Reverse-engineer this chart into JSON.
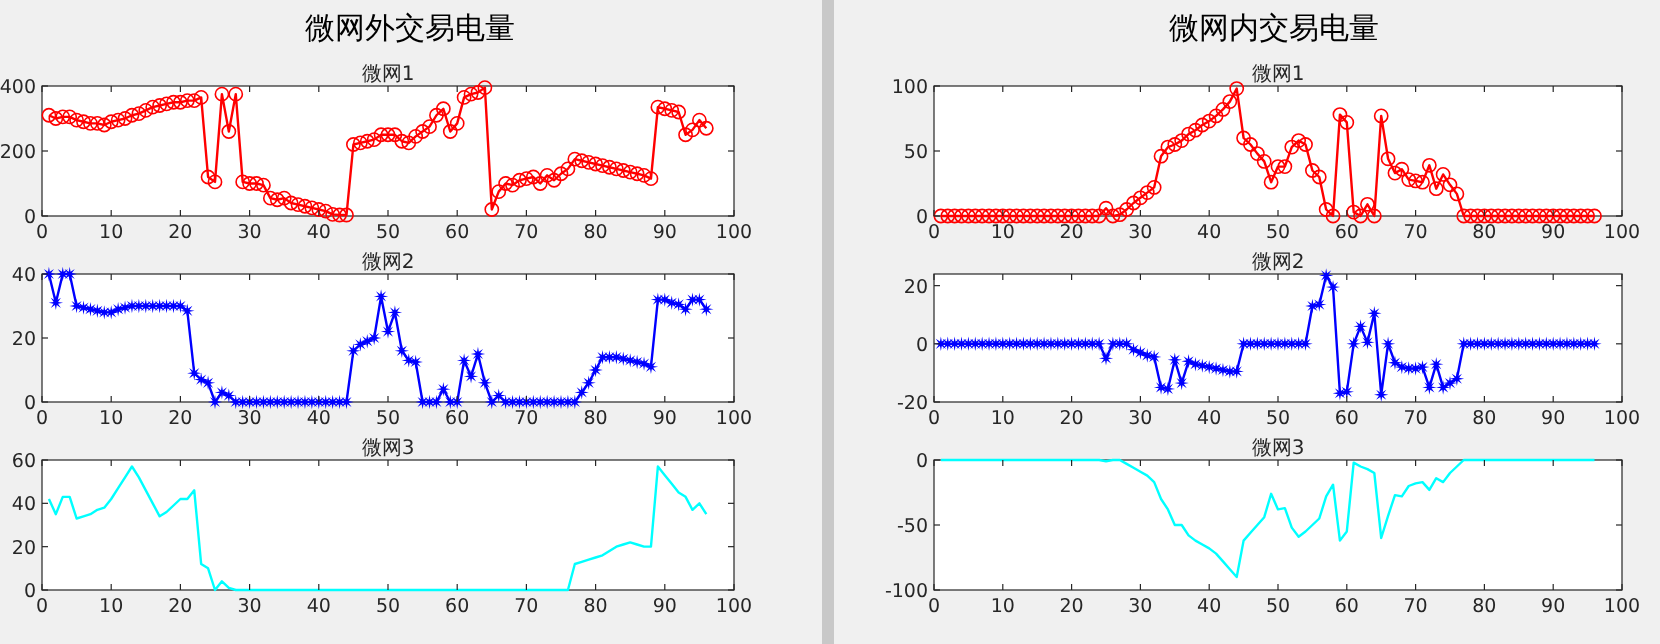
{
  "chart_data": [
    {
      "type": "line",
      "title": "微网外交易电量",
      "subtitle": "微网1",
      "grid": false,
      "marker": "circle",
      "xlim": [
        0,
        100
      ],
      "xticks": [
        0,
        10,
        20,
        30,
        40,
        50,
        60,
        70,
        80,
        90,
        100
      ],
      "ylim": [
        0,
        400
      ],
      "yticks": [
        0,
        200,
        400
      ],
      "x": [
        1,
        2,
        3,
        4,
        5,
        6,
        7,
        8,
        9,
        10,
        11,
        12,
        13,
        14,
        15,
        16,
        17,
        18,
        19,
        20,
        21,
        22,
        23,
        24,
        25,
        26,
        27,
        28,
        29,
        30,
        31,
        32,
        33,
        34,
        35,
        36,
        37,
        38,
        39,
        40,
        41,
        42,
        43,
        44,
        45,
        46,
        47,
        48,
        49,
        50,
        51,
        52,
        53,
        54,
        55,
        56,
        57,
        58,
        59,
        60,
        61,
        62,
        63,
        64,
        65,
        66,
        67,
        68,
        69,
        70,
        71,
        72,
        73,
        74,
        75,
        76,
        77,
        78,
        79,
        80,
        81,
        82,
        83,
        84,
        85,
        86,
        87,
        88,
        89,
        90,
        91,
        92,
        93,
        94,
        95,
        96
      ],
      "series": [
        {
          "color": "#ff0000",
          "values": [
            310,
            300,
            305,
            305,
            295,
            290,
            285,
            285,
            280,
            290,
            295,
            300,
            310,
            315,
            325,
            335,
            340,
            345,
            350,
            350,
            355,
            355,
            365,
            120,
            105,
            375,
            260,
            375,
            105,
            100,
            100,
            95,
            55,
            50,
            55,
            40,
            35,
            30,
            25,
            20,
            15,
            5,
            3,
            3,
            220,
            225,
            230,
            235,
            250,
            250,
            250,
            230,
            225,
            245,
            260,
            275,
            310,
            330,
            260,
            285,
            365,
            375,
            380,
            395,
            20,
            75,
            100,
            95,
            110,
            115,
            120,
            100,
            125,
            110,
            130,
            145,
            175,
            170,
            165,
            160,
            155,
            150,
            145,
            140,
            135,
            130,
            125,
            115,
            335,
            330,
            325,
            320,
            250,
            265,
            295,
            270
          ]
        }
      ]
    },
    {
      "type": "line",
      "title": "微网2",
      "grid": false,
      "marker": "star",
      "xlim": [
        0,
        100
      ],
      "xticks": [
        0,
        10,
        20,
        30,
        40,
        50,
        60,
        70,
        80,
        90,
        100
      ],
      "ylim": [
        0,
        40
      ],
      "yticks": [
        0,
        20,
        40
      ],
      "x": [
        1,
        2,
        3,
        4,
        5,
        6,
        7,
        8,
        9,
        10,
        11,
        12,
        13,
        14,
        15,
        16,
        17,
        18,
        19,
        20,
        21,
        22,
        23,
        24,
        25,
        26,
        27,
        28,
        29,
        30,
        31,
        32,
        33,
        34,
        35,
        36,
        37,
        38,
        39,
        40,
        41,
        42,
        43,
        44,
        45,
        46,
        47,
        48,
        49,
        50,
        51,
        52,
        53,
        54,
        55,
        56,
        57,
        58,
        59,
        60,
        61,
        62,
        63,
        64,
        65,
        66,
        67,
        68,
        69,
        70,
        71,
        72,
        73,
        74,
        75,
        76,
        77,
        78,
        79,
        80,
        81,
        82,
        83,
        84,
        85,
        86,
        87,
        88,
        89,
        90,
        91,
        92,
        93,
        94,
        95,
        96
      ],
      "series": [
        {
          "color": "#0000ff",
          "values": [
            40,
            31,
            40,
            40,
            30,
            29.5,
            29,
            28.5,
            28,
            28,
            29,
            29.5,
            30,
            30,
            30,
            30,
            30,
            30,
            30,
            30,
            28.5,
            9,
            7,
            6,
            0,
            3,
            2,
            0,
            0,
            0,
            0,
            0,
            0,
            0,
            0,
            0,
            0,
            0,
            0,
            0,
            0,
            0,
            0,
            0,
            16,
            18,
            19,
            20,
            33,
            22,
            28,
            16,
            13,
            12.5,
            0,
            0,
            0,
            4,
            0,
            0,
            13,
            8,
            15,
            6,
            0,
            2,
            0,
            0,
            0,
            0,
            0,
            0,
            0,
            0,
            0,
            0,
            0,
            3,
            6,
            10,
            14,
            14,
            14,
            13.5,
            13,
            12.5,
            12,
            11,
            32,
            32,
            31,
            30.5,
            29,
            32,
            32,
            29
          ]
        }
      ]
    },
    {
      "type": "line",
      "title": "微网3",
      "grid": false,
      "marker": "none",
      "xlim": [
        0,
        100
      ],
      "xticks": [
        0,
        10,
        20,
        30,
        40,
        50,
        60,
        70,
        80,
        90,
        100
      ],
      "ylim": [
        0,
        60
      ],
      "yticks": [
        0,
        20,
        40,
        60
      ],
      "x": [
        1,
        2,
        3,
        4,
        5,
        6,
        7,
        8,
        9,
        10,
        11,
        12,
        13,
        14,
        15,
        16,
        17,
        18,
        19,
        20,
        21,
        22,
        23,
        24,
        25,
        26,
        27,
        28,
        29,
        30,
        31,
        32,
        33,
        34,
        35,
        36,
        37,
        38,
        39,
        40,
        41,
        42,
        43,
        44,
        45,
        46,
        47,
        48,
        49,
        50,
        51,
        52,
        53,
        54,
        55,
        56,
        57,
        58,
        59,
        60,
        61,
        62,
        63,
        64,
        65,
        66,
        67,
        68,
        69,
        70,
        71,
        72,
        73,
        74,
        75,
        76,
        77,
        78,
        79,
        80,
        81,
        82,
        83,
        84,
        85,
        86,
        87,
        88,
        89,
        90,
        91,
        92,
        93,
        94,
        95,
        96
      ],
      "series": [
        {
          "color": "#00ffff",
          "values": [
            42,
            35,
            43,
            43,
            33,
            34,
            35,
            37,
            38,
            42,
            47,
            52,
            57,
            52,
            46,
            40,
            34,
            36,
            39,
            42,
            42,
            46,
            12,
            10,
            0,
            4,
            1,
            0,
            0,
            0,
            0,
            0,
            0,
            0,
            0,
            0,
            0,
            0,
            0,
            0,
            0,
            0,
            0,
            0,
            0,
            0,
            0,
            0,
            0,
            0,
            0,
            0,
            0,
            0,
            0,
            0,
            0,
            0,
            0,
            0,
            0,
            0,
            0,
            0,
            0,
            0,
            0,
            0,
            0,
            0,
            0,
            0,
            0,
            0,
            0,
            0,
            12,
            13,
            14,
            15,
            16,
            18,
            20,
            21,
            22,
            21,
            20,
            20,
            57,
            53,
            49,
            45,
            43,
            37,
            40,
            35
          ]
        }
      ]
    },
    {
      "type": "line",
      "title": "微网内交易电量",
      "subtitle": "微网1",
      "grid": false,
      "marker": "circle",
      "xlim": [
        0,
        100
      ],
      "xticks": [
        0,
        10,
        20,
        30,
        40,
        50,
        60,
        70,
        80,
        90,
        100
      ],
      "ylim": [
        0,
        100
      ],
      "yticks": [
        0,
        50,
        100
      ],
      "x": [
        1,
        2,
        3,
        4,
        5,
        6,
        7,
        8,
        9,
        10,
        11,
        12,
        13,
        14,
        15,
        16,
        17,
        18,
        19,
        20,
        21,
        22,
        23,
        24,
        25,
        26,
        27,
        28,
        29,
        30,
        31,
        32,
        33,
        34,
        35,
        36,
        37,
        38,
        39,
        40,
        41,
        42,
        43,
        44,
        45,
        46,
        47,
        48,
        49,
        50,
        51,
        52,
        53,
        54,
        55,
        56,
        57,
        58,
        59,
        60,
        61,
        62,
        63,
        64,
        65,
        66,
        67,
        68,
        69,
        70,
        71,
        72,
        73,
        74,
        75,
        76,
        77,
        78,
        79,
        80,
        81,
        82,
        83,
        84,
        85,
        86,
        87,
        88,
        89,
        90,
        91,
        92,
        93,
        94,
        95,
        96
      ],
      "series": [
        {
          "color": "#ff0000",
          "values": [
            0,
            0,
            0,
            0,
            0,
            0,
            0,
            0,
            0,
            0,
            0,
            0,
            0,
            0,
            0,
            0,
            0,
            0,
            0,
            0,
            0,
            0,
            0,
            0,
            6,
            0,
            1,
            5,
            10,
            14,
            18,
            22,
            46,
            53,
            55,
            58,
            63,
            66,
            70,
            73,
            77,
            82,
            88,
            98,
            60,
            55,
            48,
            42,
            26,
            38,
            38,
            53,
            58,
            55,
            35,
            30,
            5,
            0,
            78,
            72,
            3,
            0,
            9,
            0,
            77,
            44,
            33,
            36,
            28,
            27,
            26,
            39,
            21,
            32,
            24,
            17,
            0,
            0,
            0,
            0,
            0,
            0,
            0,
            0,
            0,
            0,
            0,
            0,
            0,
            0,
            0,
            0,
            0,
            0,
            0,
            0
          ]
        }
      ]
    },
    {
      "type": "line",
      "title": "微网2",
      "grid": false,
      "marker": "star",
      "xlim": [
        0,
        100
      ],
      "xticks": [
        0,
        10,
        20,
        30,
        40,
        50,
        60,
        70,
        80,
        90,
        100
      ],
      "ylim": [
        -20,
        24
      ],
      "yticks": [
        -20,
        0,
        20
      ],
      "x": [
        1,
        2,
        3,
        4,
        5,
        6,
        7,
        8,
        9,
        10,
        11,
        12,
        13,
        14,
        15,
        16,
        17,
        18,
        19,
        20,
        21,
        22,
        23,
        24,
        25,
        26,
        27,
        28,
        29,
        30,
        31,
        32,
        33,
        34,
        35,
        36,
        37,
        38,
        39,
        40,
        41,
        42,
        43,
        44,
        45,
        46,
        47,
        48,
        49,
        50,
        51,
        52,
        53,
        54,
        55,
        56,
        57,
        58,
        59,
        60,
        61,
        62,
        63,
        64,
        65,
        66,
        67,
        68,
        69,
        70,
        71,
        72,
        73,
        74,
        75,
        76,
        77,
        78,
        79,
        80,
        81,
        82,
        83,
        84,
        85,
        86,
        87,
        88,
        89,
        90,
        91,
        92,
        93,
        94,
        95,
        96
      ],
      "series": [
        {
          "color": "#0000ff",
          "values": [
            0,
            0,
            0,
            0,
            0,
            0,
            0,
            0,
            0,
            0,
            0,
            0,
            0,
            0,
            0,
            0,
            0,
            0,
            0,
            0,
            0,
            0,
            0,
            0,
            -5,
            0,
            0,
            0,
            -2,
            -3,
            -4,
            -4.5,
            -15,
            -15.5,
            -5.5,
            -13.5,
            -6,
            -7,
            -7.5,
            -8,
            -8.5,
            -9,
            -9.5,
            -9.5,
            0,
            0,
            0,
            0,
            0,
            0,
            0,
            0,
            0,
            0,
            13,
            13.5,
            23.5,
            19.5,
            -17,
            -16.5,
            0,
            6,
            0.5,
            10.5,
            -17.5,
            0,
            -6.5,
            -8,
            -8.5,
            -8.5,
            -8,
            -15,
            -7,
            -15,
            -13.5,
            -12,
            0,
            0,
            0,
            0,
            0,
            0,
            0,
            0,
            0,
            0,
            0,
            0,
            0,
            0,
            0,
            0,
            0,
            0,
            0,
            0
          ]
        }
      ]
    },
    {
      "type": "line",
      "title": "微网3",
      "grid": false,
      "marker": "none",
      "xlim": [
        0,
        100
      ],
      "xticks": [
        0,
        10,
        20,
        30,
        40,
        50,
        60,
        70,
        80,
        90,
        100
      ],
      "ylim": [
        -100,
        0
      ],
      "yticks": [
        -100,
        -50,
        0
      ],
      "x": [
        1,
        2,
        3,
        4,
        5,
        6,
        7,
        8,
        9,
        10,
        11,
        12,
        13,
        14,
        15,
        16,
        17,
        18,
        19,
        20,
        21,
        22,
        23,
        24,
        25,
        26,
        27,
        28,
        29,
        30,
        31,
        32,
        33,
        34,
        35,
        36,
        37,
        38,
        39,
        40,
        41,
        42,
        43,
        44,
        45,
        46,
        47,
        48,
        49,
        50,
        51,
        52,
        53,
        54,
        55,
        56,
        57,
        58,
        59,
        60,
        61,
        62,
        63,
        64,
        65,
        66,
        67,
        68,
        69,
        70,
        71,
        72,
        73,
        74,
        75,
        76,
        77,
        78,
        79,
        80,
        81,
        82,
        83,
        84,
        85,
        86,
        87,
        88,
        89,
        90,
        91,
        92,
        93,
        94,
        95,
        96
      ],
      "series": [
        {
          "color": "#00ffff",
          "values": [
            0,
            0,
            0,
            0,
            0,
            0,
            0,
            0,
            0,
            0,
            0,
            0,
            0,
            0,
            0,
            0,
            0,
            0,
            0,
            0,
            0,
            0,
            0,
            0,
            -1,
            0,
            0,
            -3,
            -6,
            -9,
            -12,
            -17,
            -30,
            -38,
            -50,
            -50,
            -58,
            -62,
            -65,
            -68,
            -72,
            -78,
            -84,
            -90,
            -62,
            -56,
            -50,
            -44,
            -26,
            -38,
            -37,
            -52,
            -59,
            -55,
            -50,
            -45,
            -28,
            -19,
            -62,
            -55,
            -2,
            -5,
            -7,
            -10,
            -60,
            -43,
            -27,
            -28,
            -20,
            -18,
            -17,
            -23,
            -14,
            -17,
            -10,
            -5,
            0,
            0,
            0,
            0,
            0,
            0,
            0,
            0,
            0,
            0,
            0,
            0,
            0,
            0,
            0,
            0,
            0,
            0,
            0,
            0
          ]
        }
      ]
    }
  ]
}
